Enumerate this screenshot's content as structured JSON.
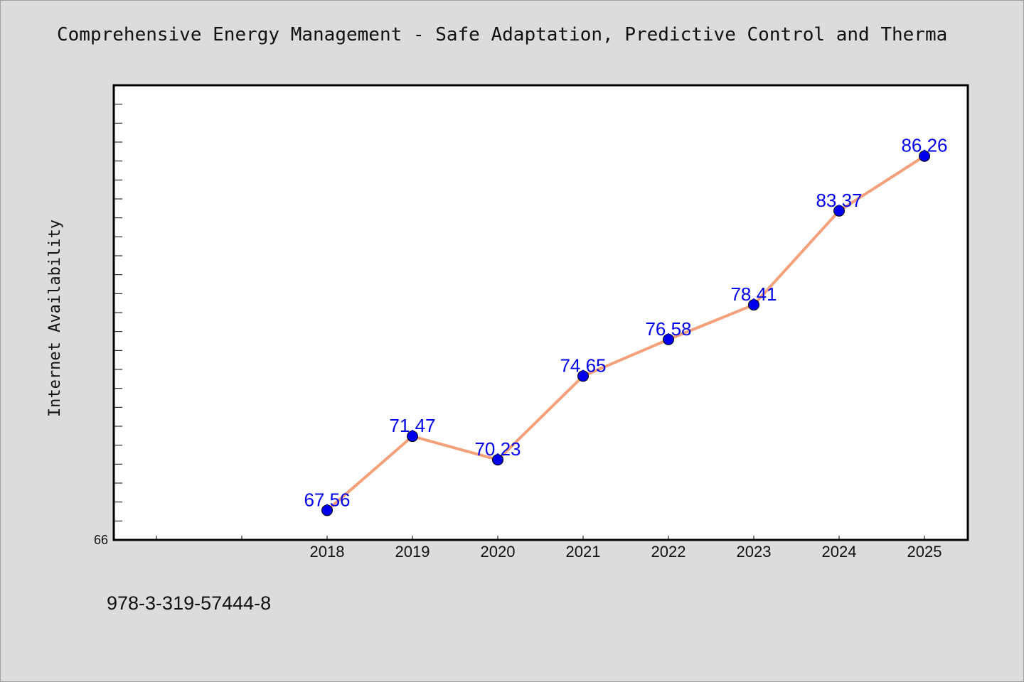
{
  "title": "Comprehensive Energy Management - Safe Adaptation, Predictive Control and Therma",
  "footer": "978-3-319-57444-8",
  "chart_data": {
    "type": "line",
    "title": "Comprehensive Energy Management - Safe Adaptation, Predictive Control and Therma",
    "xlabel": "",
    "ylabel": "Internet Availability",
    "categories": [
      "2018",
      "2019",
      "2020",
      "2021",
      "2022",
      "2023",
      "2024",
      "2025"
    ],
    "series": [
      {
        "values": [
          67.56,
          71.47,
          70.23,
          74.65,
          76.58,
          78.41,
          83.37,
          86.26
        ],
        "line_color": "#f4a07a",
        "marker_color": "#0000ee"
      }
    ],
    "y_tick_labels": [
      "66"
    ],
    "ylim": [
      66,
      90
    ],
    "x_slots_before_first_year": 2,
    "grid": false,
    "legend": "none"
  }
}
